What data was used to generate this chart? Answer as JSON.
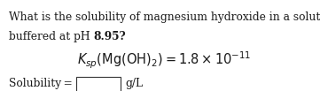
{
  "line1": "What is the solubility of magnesium hydroxide in a solution",
  "line2_normal": "buffered at pH ",
  "line2_bold": "8.95?",
  "formula": "$K_{sp}(\\mathrm{Mg(OH)_2}) = 1.8 \\times 10^{-11}$",
  "solubility_label": "Solubility =",
  "solubility_unit": "g/L",
  "bg_color": "#ffffff",
  "text_color": "#1a1a1a",
  "font_size_body": 8.8,
  "font_size_formula": 10.5,
  "figw": 3.61,
  "figh": 1.03
}
